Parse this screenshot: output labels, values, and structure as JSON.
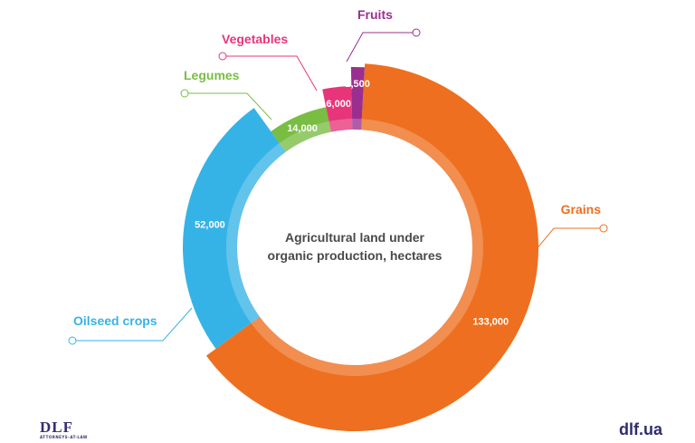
{
  "chart_data": {
    "type": "pie",
    "subtype": "donut",
    "title": "Agricultural land under organic production, hectares",
    "title_lines": [
      "Agricultural land under",
      "organic production, hectares"
    ],
    "slices": [
      {
        "label": "Grains",
        "value": 133000,
        "value_label": "133,000",
        "color": "#ee6f1f"
      },
      {
        "label": "Oilseed crops",
        "value": 52000,
        "value_label": "52,000",
        "color": "#36b3e6"
      },
      {
        "label": "Legumes",
        "value": 14000,
        "value_label": "14,000",
        "color": "#79bd43"
      },
      {
        "label": "Vegetables",
        "value": 6000,
        "value_label": "6,000",
        "color": "#e8357a"
      },
      {
        "label": "Fruits",
        "value": 2500,
        "value_label": "2,500",
        "color": "#9b2f8f"
      }
    ]
  },
  "logos": {
    "left": "DLF",
    "left_sub": "ATTORNEYS-AT-LAW",
    "right": "dlf.ua"
  }
}
